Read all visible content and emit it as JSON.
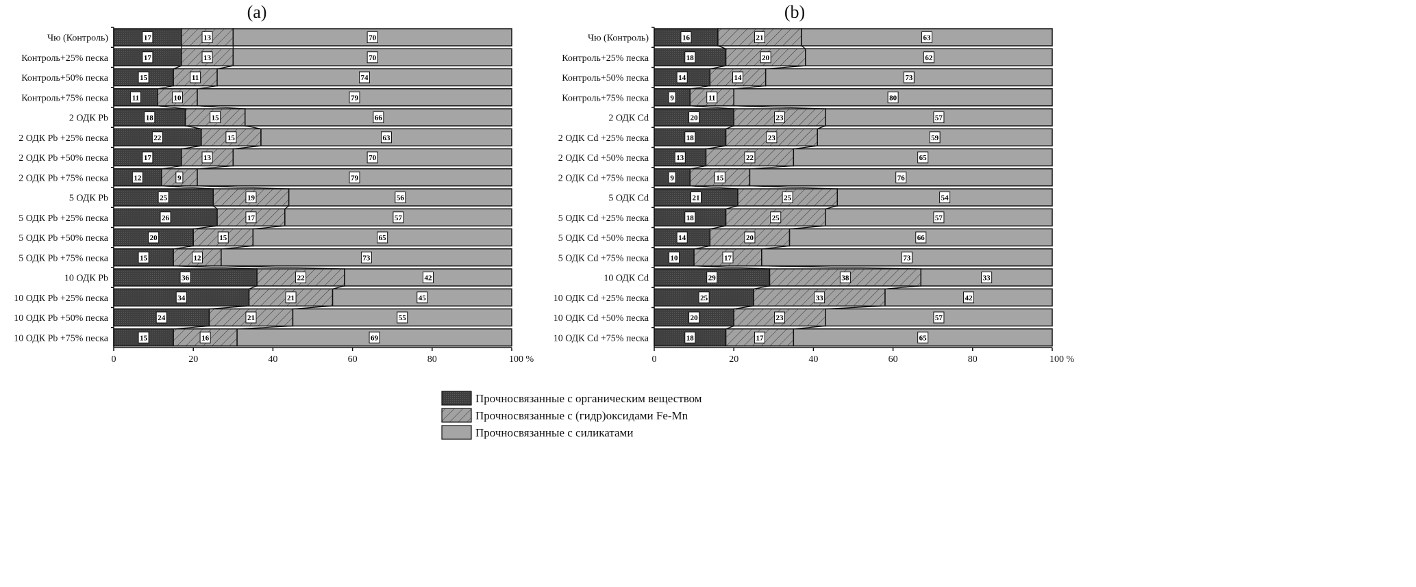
{
  "colors": {
    "organic": "#3f3f3f",
    "femn": "#a2a2a2",
    "silicate": "#a5a5a5",
    "hatch": "#333333"
  },
  "legend": [
    "Прочносвязанные с органическим веществом",
    "Прочносвязанные с (гидр)оксидами Fe-Mn",
    "Прочносвязанные с силикатами"
  ],
  "chart_data": [
    {
      "type": "bar",
      "orientation": "horizontal-stacked-100",
      "title": "(a)",
      "xlabel": "%",
      "xlim": [
        0,
        100
      ],
      "xticks": [
        "0",
        "20",
        "40",
        "60",
        "80",
        "100 %"
      ],
      "categories": [
        "Чю (Контроль)",
        "Контроль+25% песка",
        "Контроль+50% песка",
        "Контроль+75% песка",
        "2 ОДК Pb",
        "2 ОДК Pb +25% песка",
        "2 ОДК Pb +50% песка",
        "2 ОДК Pb +75% песка",
        "5 ОДК Pb",
        "5 ОДК Pb +25% песка",
        "5 ОДК Pb +50% песка",
        "5 ОДК Pb +75% песка",
        "10 ОДК Pb",
        "10 ОДК Pb +25% песка",
        "10 ОДК Pb +50% песка",
        "10 ОДК Pb +75% песка"
      ],
      "series": [
        {
          "name": "Прочносвязанные с органическим веществом",
          "values": [
            17,
            17,
            15,
            11,
            18,
            22,
            17,
            12,
            25,
            26,
            20,
            15,
            36,
            34,
            24,
            15
          ]
        },
        {
          "name": "Прочносвязанные с (гидр)оксидами Fe-Mn",
          "values": [
            13,
            13,
            11,
            10,
            15,
            15,
            13,
            9,
            19,
            17,
            15,
            12,
            22,
            21,
            21,
            16
          ]
        },
        {
          "name": "Прочносвязанные с силикатами",
          "values": [
            70,
            70,
            74,
            79,
            66,
            63,
            70,
            79,
            56,
            57,
            65,
            73,
            42,
            45,
            55,
            69
          ]
        }
      ]
    },
    {
      "type": "bar",
      "orientation": "horizontal-stacked-100",
      "title": "(b)",
      "xlabel": "%",
      "xlim": [
        0,
        100
      ],
      "xticks": [
        "0",
        "20",
        "40",
        "60",
        "80",
        "100 %"
      ],
      "categories": [
        "Чю (Контроль)",
        "Контроль+25% песка",
        "Контроль+50% песка",
        "Контроль+75% песка",
        "2 ОДК Cd",
        "2 ОДК Cd +25% песка",
        "2 ОДК Cd +50% песка",
        "2 ОДК Cd +75% песка",
        "5 ОДК Cd",
        "5 ОДК Cd +25% песка",
        "5 ОДК Cd +50% песка",
        "5 ОДК Cd +75% песка",
        "10 ОДК Cd",
        "10 ОДК Cd +25% песка",
        "10 ОДК Cd +50% песка",
        "10 ОДК Cd +75% песка"
      ],
      "series": [
        {
          "name": "Прочносвязанные с органическим веществом",
          "values": [
            16,
            18,
            14,
            9,
            20,
            18,
            13,
            9,
            21,
            18,
            14,
            10,
            29,
            25,
            20,
            18
          ]
        },
        {
          "name": "Прочносвязанные с (гидр)оксидами Fe-Mn",
          "values": [
            21,
            20,
            14,
            11,
            23,
            23,
            22,
            15,
            25,
            25,
            20,
            17,
            38,
            33,
            23,
            17
          ]
        },
        {
          "name": "Прочносвязанные с силикатами",
          "values": [
            63,
            62,
            73,
            80,
            57,
            59,
            65,
            76,
            54,
            57,
            66,
            73,
            33,
            42,
            57,
            65
          ]
        }
      ]
    }
  ]
}
